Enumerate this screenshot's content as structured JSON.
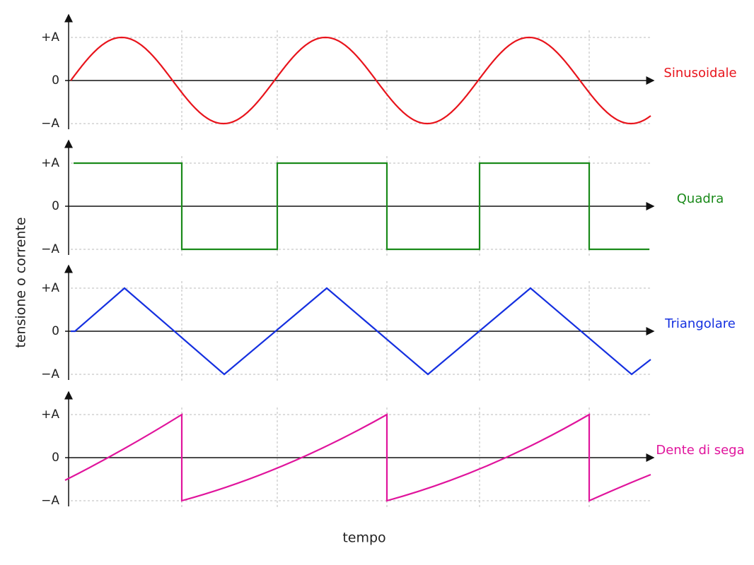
{
  "y_axis_label": "tensione o corrente",
  "x_axis_label": "tempo",
  "panels": [
    {
      "name": "Sinusoidale",
      "ticks": [
        "+A",
        "0",
        "−A"
      ]
    },
    {
      "name": "Quadra",
      "ticks": [
        "+A",
        "0",
        "−A"
      ]
    },
    {
      "name": "Triangolare",
      "ticks": [
        "+A",
        "0",
        "−A"
      ]
    },
    {
      "name": "Dente di sega",
      "ticks": [
        "+A",
        "0",
        "−A"
      ]
    }
  ]
}
